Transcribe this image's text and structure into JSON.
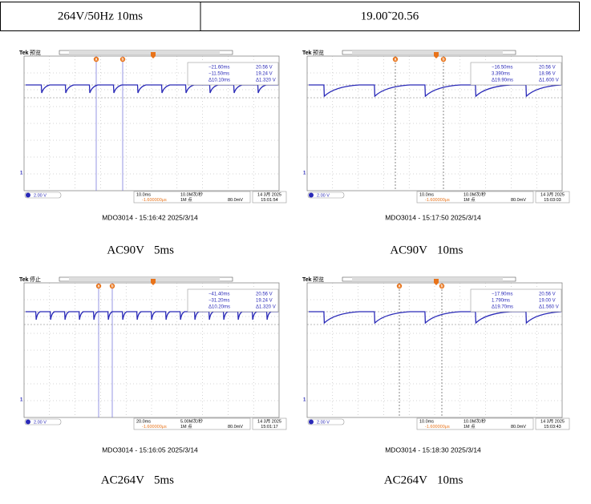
{
  "table": {
    "rows": [
      [
        "264V/50Hz 10ms",
        "19.00˜20.56"
      ]
    ]
  },
  "panels": [
    {
      "brand": "Tek",
      "status": "预览",
      "cursor_a": "a",
      "cursor_b": "b",
      "readout": [
        [
          "−21.60ms",
          "20.56 V"
        ],
        [
          "−11.50ms",
          "19.24 V"
        ],
        [
          "Δ10.10ms",
          "Δ1.320 V"
        ]
      ],
      "channel": "1",
      "volts": "2.00 V",
      "timebase": "10.0ms",
      "sample_rate": "10.0M次/秒",
      "record": "1M 点",
      "trigger_delay": "-1.600000μs",
      "trigger_level": "80.0mV",
      "date": "14 3月 2025",
      "time": "15:01:54",
      "caption": "MDO3014 - 15:16:42  2025/3/14",
      "label": "AC90V",
      "duration": "5ms"
    },
    {
      "brand": "Tek",
      "status": "预览",
      "cursor_a": "a",
      "cursor_b": "b",
      "readout": [
        [
          "−16.50ms",
          "20.56 V"
        ],
        [
          "3.390ms",
          "18.96 V"
        ],
        [
          "Δ19.90ms",
          "Δ1.600 V"
        ]
      ],
      "channel": "1",
      "volts": "2.00 V",
      "timebase": "10.0ms",
      "sample_rate": "10.0M次/秒",
      "record": "1M 点",
      "trigger_delay": "-1.600000μs",
      "trigger_level": "80.0mV",
      "date": "14 3月 2025",
      "time": "15:03:03",
      "caption": "MDO3014 - 15:17:50  2025/3/14",
      "label": "AC90V",
      "duration": "10ms"
    },
    {
      "brand": "Tek",
      "status": "停止",
      "cursor_a": "a",
      "cursor_b": "b",
      "readout": [
        [
          "−41.40ms",
          "20.56 V"
        ],
        [
          "−31.20ms",
          "19.24 V"
        ],
        [
          "Δ10.20ms",
          "Δ1.320 V"
        ]
      ],
      "channel": "1",
      "volts": "2.00 V",
      "timebase": "20.0ms",
      "sample_rate": "5.00M次/秒",
      "record": "1M 点",
      "trigger_delay": "-1.600000μs",
      "trigger_level": "80.0mV",
      "date": "14 3月 2025",
      "time": "15:01:17",
      "caption": "MDO3014 - 15:16:05  2025/3/14",
      "label": "AC264V",
      "duration": "5ms"
    },
    {
      "brand": "Tek",
      "status": "预览",
      "cursor_a": "a",
      "cursor_b": "b",
      "readout": [
        [
          "−17.90ms",
          "20.56 V"
        ],
        [
          "1.790ms",
          "19.00 V"
        ],
        [
          "Δ19.70ms",
          "Δ1.560 V"
        ]
      ],
      "channel": "1",
      "volts": "2.00 V",
      "timebase": "10.0ms",
      "sample_rate": "10.0M次/秒",
      "record": "1M 点",
      "trigger_delay": "-1.600000μs",
      "trigger_level": "80.0mV",
      "date": "14 3月 2025",
      "time": "15:03:43",
      "caption": "MDO3014 - 15:18:30  2025/3/14",
      "label": "AC264V",
      "duration": "10ms"
    }
  ]
}
